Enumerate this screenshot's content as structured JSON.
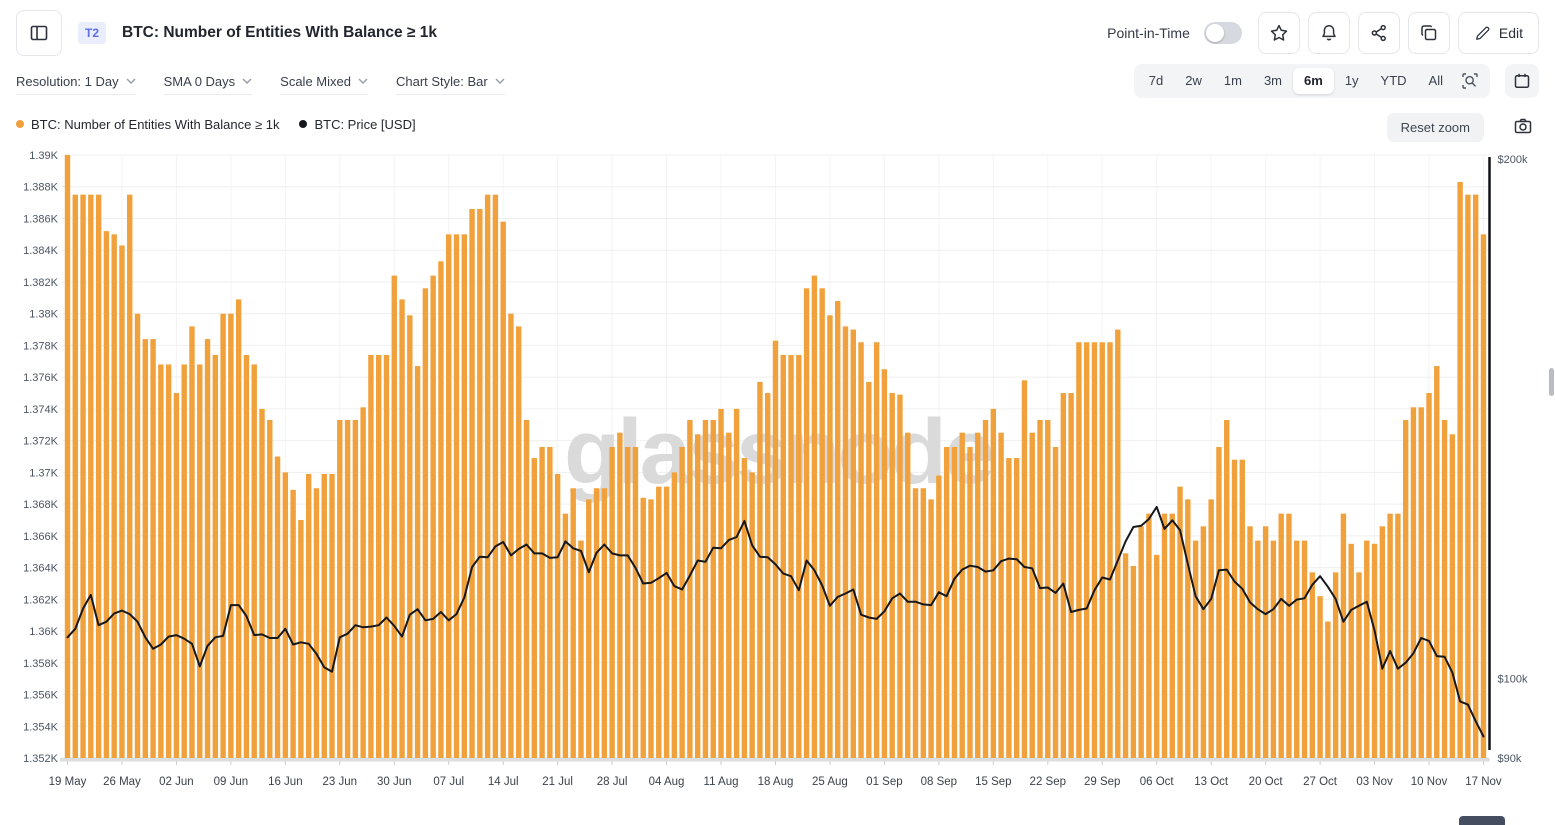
{
  "header": {
    "badge": "T2",
    "title": "BTC: Number of Entities With Balance ≥ 1k",
    "point_in_time_label": "Point-in-Time",
    "point_in_time_on": false,
    "edit_label": "Edit"
  },
  "controls": {
    "resolution": "Resolution: 1 Day",
    "sma": "SMA 0 Days",
    "scale": "Scale Mixed",
    "chart_style": "Chart Style: Bar"
  },
  "ranges": {
    "options": [
      "7d",
      "2w",
      "1m",
      "3m",
      "6m",
      "1y",
      "YTD",
      "All"
    ],
    "active": "6m"
  },
  "legend": [
    {
      "label": "BTC: Number of Entities With Balance ≥ 1k",
      "color": "#F0A13C"
    },
    {
      "label": "BTC: Price [USD]",
      "color": "#16181D"
    }
  ],
  "labels": {
    "reset_zoom": "Reset zoom"
  },
  "watermark": "glassnode",
  "icons": {
    "sidebar-toggle-icon": "panel-left",
    "star-icon": "star outline",
    "bell-icon": "notification bell",
    "share-icon": "share nodes",
    "copy-icon": "duplicate squares",
    "pencil-icon": "edit pencil",
    "chevron-down-icon": "dropdown chevron",
    "zoom-area-icon": "magnifier with selection corners",
    "calendar-icon": "calendar",
    "camera-icon": "screenshot camera"
  },
  "chart_data": {
    "type": "bar",
    "x_start": "19 May",
    "x_end": "17 Nov",
    "x_tick_labels": [
      "19 May",
      "26 May",
      "02 Jun",
      "09 Jun",
      "16 Jun",
      "23 Jun",
      "30 Jun",
      "07 Jul",
      "14 Jul",
      "21 Jul",
      "28 Jul",
      "04 Aug",
      "11 Aug",
      "18 Aug",
      "25 Aug",
      "01 Sep",
      "08 Sep",
      "15 Sep",
      "22 Sep",
      "29 Sep",
      "06 Oct",
      "13 Oct",
      "20 Oct",
      "27 Oct",
      "03 Nov",
      "10 Nov",
      "17 Nov"
    ],
    "left_axis": {
      "min": 1.352,
      "max": 1.39,
      "unit": "K entities",
      "tick_labels": [
        "1.39K",
        "1.388K",
        "1.386K",
        "1.384K",
        "1.382K",
        "1.38K",
        "1.378K",
        "1.376K",
        "1.374K",
        "1.372K",
        "1.37K",
        "1.368K",
        "1.366K",
        "1.364K",
        "1.362K",
        "1.36K",
        "1.358K",
        "1.356K",
        "1.354K",
        "1.352K"
      ]
    },
    "right_axis": {
      "scale": "log",
      "top_k": 200,
      "bottom_k": 90,
      "tick_labels": [
        "$200k",
        "$100k",
        "$90k"
      ]
    },
    "grid": true,
    "legend_position": "top-left",
    "series": [
      {
        "name": "BTC: Number of Entities With Balance ≥ 1k",
        "type": "bar",
        "axis": "left",
        "color": "#F0A13C",
        "values": [
          1.39,
          1.3875,
          1.3875,
          1.3875,
          1.3875,
          1.3852,
          1.385,
          1.3843,
          1.3875,
          1.38,
          1.3784,
          1.3784,
          1.3768,
          1.3768,
          1.375,
          1.3768,
          1.3792,
          1.3768,
          1.3784,
          1.3774,
          1.38,
          1.38,
          1.3809,
          1.3774,
          1.3768,
          1.374,
          1.3733,
          1.371,
          1.37,
          1.3689,
          1.367,
          1.3699,
          1.369,
          1.3699,
          1.3699,
          1.3733,
          1.3733,
          1.3733,
          1.3741,
          1.3774,
          1.3774,
          1.3774,
          1.3824,
          1.3809,
          1.3799,
          1.3767,
          1.3816,
          1.3824,
          1.3833,
          1.385,
          1.385,
          1.385,
          1.3866,
          1.3866,
          1.3875,
          1.3875,
          1.3858,
          1.38,
          1.3792,
          1.3733,
          1.3709,
          1.3716,
          1.3716,
          1.3699,
          1.3674,
          1.369,
          1.3657,
          1.3683,
          1.369,
          1.369,
          1.3716,
          1.3725,
          1.3716,
          1.3716,
          1.3684,
          1.3683,
          1.3691,
          1.3691,
          1.37,
          1.3716,
          1.3733,
          1.3724,
          1.3733,
          1.3733,
          1.374,
          1.3725,
          1.374,
          1.3709,
          1.37,
          1.3757,
          1.375,
          1.3783,
          1.3774,
          1.3774,
          1.3774,
          1.3816,
          1.3824,
          1.3816,
          1.3799,
          1.3808,
          1.3792,
          1.379,
          1.3782,
          1.3757,
          1.3782,
          1.3765,
          1.375,
          1.3749,
          1.3725,
          1.369,
          1.369,
          1.3683,
          1.3698,
          1.3716,
          1.3716,
          1.3725,
          1.3716,
          1.3725,
          1.3733,
          1.374,
          1.3725,
          1.3709,
          1.3709,
          1.3758,
          1.3725,
          1.3733,
          1.3733,
          1.3716,
          1.375,
          1.375,
          1.3782,
          1.3782,
          1.3782,
          1.3782,
          1.3782,
          1.379,
          1.3649,
          1.3641,
          1.3666,
          1.3674,
          1.3648,
          1.3674,
          1.3674,
          1.3691,
          1.3683,
          1.3657,
          1.3666,
          1.3683,
          1.3716,
          1.3733,
          1.3708,
          1.3708,
          1.3666,
          1.3657,
          1.3666,
          1.3657,
          1.3674,
          1.3674,
          1.3657,
          1.3657,
          1.3637,
          1.3622,
          1.3606,
          1.3637,
          1.3674,
          1.3655,
          1.3637,
          1.3657,
          1.3655,
          1.3666,
          1.3674,
          1.3674,
          1.3733,
          1.3741,
          1.3741,
          1.375,
          1.3767,
          1.3733,
          1.3724,
          1.3883,
          1.3875,
          1.3875,
          1.385
        ]
      },
      {
        "name": "BTC: Price [USD]",
        "type": "line",
        "axis": "right",
        "color": "#16181D",
        "unit": "$k",
        "values": [
          105.6,
          106.8,
          109.7,
          111.7,
          107.3,
          107.8,
          109.0,
          109.4,
          108.9,
          107.8,
          105.6,
          104.0,
          104.6,
          105.7,
          105.9,
          105.4,
          104.7,
          101.6,
          104.4,
          105.6,
          105.8,
          110.2,
          110.2,
          108.6,
          105.9,
          106.0,
          105.5,
          105.5,
          106.8,
          104.6,
          104.9,
          104.7,
          103.3,
          101.5,
          100.9,
          105.6,
          106.1,
          107.3,
          107.0,
          107.1,
          107.3,
          108.4,
          107.2,
          105.7,
          108.8,
          109.6,
          108.0,
          108.2,
          109.2,
          108.0,
          108.9,
          111.3,
          115.9,
          117.5,
          117.4,
          119.1,
          119.8,
          117.7,
          118.7,
          119.4,
          118.0,
          118.0,
          117.3,
          117.4,
          119.9,
          118.8,
          118.4,
          115.1,
          118.1,
          119.4,
          118.0,
          117.7,
          117.7,
          115.8,
          113.4,
          113.5,
          114.2,
          115.0,
          113.0,
          112.5,
          114.6,
          116.9,
          116.7,
          118.9,
          118.8,
          120.1,
          120.6,
          123.2,
          119.3,
          117.5,
          117.4,
          116.3,
          114.9,
          114.5,
          112.4,
          116.9,
          115.4,
          113.1,
          110.1,
          111.4,
          111.9,
          112.5,
          108.8,
          108.4,
          108.2,
          109.3,
          111.2,
          111.9,
          110.7,
          110.7,
          110.3,
          110.2,
          112.1,
          111.5,
          114.1,
          115.5,
          116.1,
          115.9,
          115.2,
          115.4,
          116.8,
          117.2,
          117.1,
          115.9,
          115.7,
          112.7,
          112.8,
          112.0,
          113.4,
          109.2,
          109.5,
          109.7,
          112.4,
          114.3,
          114.0,
          116.9,
          119.9,
          122.2,
          122.4,
          123.5,
          125.5,
          121.9,
          123.3,
          121.7,
          116.4,
          111.5,
          109.6,
          111.1,
          115.4,
          115.5,
          113.7,
          112.6,
          110.6,
          109.6,
          108.9,
          109.6,
          111.1,
          110.1,
          111.0,
          111.2,
          113.2,
          114.5,
          112.9,
          111.1,
          107.8,
          109.5,
          110.1,
          110.7,
          106.6,
          101.3,
          103.7,
          101.3,
          102.1,
          103.4,
          105.5,
          105.1,
          103.0,
          102.9,
          100.8,
          97.0,
          96.6,
          94.5,
          92.6
        ]
      }
    ]
  }
}
